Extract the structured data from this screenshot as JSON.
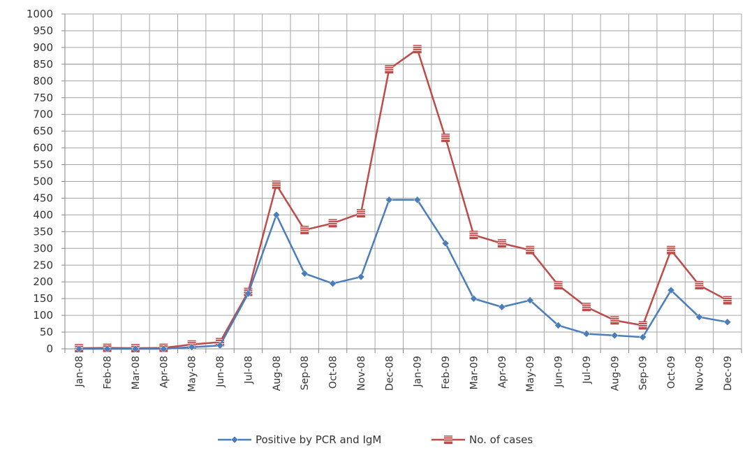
{
  "chart_data": {
    "type": "line",
    "title": "",
    "xlabel": "",
    "ylabel": "",
    "ylim": [
      0,
      1000
    ],
    "y_ticks": [
      0,
      50,
      100,
      150,
      200,
      250,
      300,
      350,
      400,
      450,
      500,
      550,
      600,
      650,
      700,
      750,
      800,
      850,
      900,
      950,
      1000
    ],
    "y_tick_labels": [
      "0",
      "50",
      "100",
      "150",
      "200",
      "250",
      "300",
      "350",
      "400",
      "450",
      "500",
      "550",
      "600",
      "650",
      "700",
      "750",
      "800",
      "850",
      "900",
      "950",
      "1000"
    ],
    "grid": true,
    "legend": "bottom",
    "categories": [
      "Jan-08",
      "Feb-08",
      "Mar-08",
      "Apr-08",
      "May-08",
      "Jun-08",
      "Jul-08",
      "Aug-08",
      "Sep-08",
      "Oct-08",
      "Nov-08",
      "Dec-08",
      "Jan-09",
      "Feb-09",
      "Mar-09",
      "Apr-09",
      "May-09",
      "Jun-09",
      "Jul-09",
      "Aug-09",
      "Sep-09",
      "Oct-09",
      "Nov-09",
      "Dec-09"
    ],
    "series": [
      {
        "name": "Positive by PCR and IgM",
        "color": "#4a7ebb",
        "marker": "diamond",
        "values": [
          0,
          0,
          0,
          0,
          5,
          10,
          165,
          400,
          225,
          195,
          215,
          445,
          445,
          315,
          150,
          125,
          145,
          70,
          45,
          40,
          35,
          175,
          95,
          80
        ]
      },
      {
        "name": "No. of cases",
        "color": "#be4b48",
        "marker": "square",
        "values": [
          2,
          3,
          2,
          3,
          13,
          20,
          170,
          490,
          355,
          375,
          405,
          835,
          895,
          630,
          340,
          315,
          295,
          190,
          125,
          85,
          70,
          295,
          190,
          145
        ]
      }
    ]
  }
}
